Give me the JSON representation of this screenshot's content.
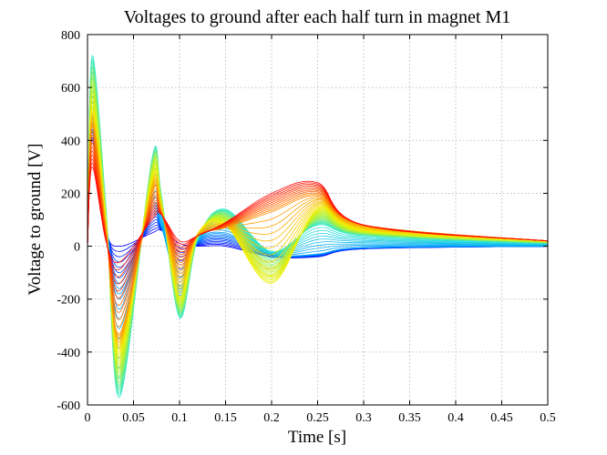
{
  "chart_data": {
    "type": "line",
    "title": "Voltages to ground after each half turn in magnet M1",
    "xlabel": "Time [s]",
    "ylabel": "Voltage to ground [V]",
    "xlim": [
      0,
      0.5
    ],
    "ylim": [
      -600,
      800
    ],
    "xticks": [
      0,
      0.05,
      0.1,
      0.15,
      0.2,
      0.25,
      0.3,
      0.35,
      0.4,
      0.45,
      0.5
    ],
    "xtick_labels": [
      "0",
      "0.05",
      "0.1",
      "0.15",
      "0.2",
      "0.25",
      "0.3",
      "0.35",
      "0.4",
      "0.45",
      "0.5"
    ],
    "yticks": [
      -600,
      -400,
      -200,
      0,
      200,
      400,
      600,
      800
    ],
    "ytick_labels": [
      "-600",
      "-400",
      "-200",
      "0",
      "200",
      "400",
      "600",
      "800"
    ],
    "grid": true,
    "legend": "none",
    "colormap": "blue-to-red (jet), one curve per half turn",
    "series": [
      {
        "color": "#0000ff",
        "x": [
          0,
          0.005,
          0.02,
          0.035,
          0.07,
          0.08,
          0.1,
          0.12,
          0.15,
          0.2,
          0.25,
          0.3,
          0.5
        ],
        "y": [
          0,
          400,
          60,
          0,
          50,
          60,
          10,
          0,
          0,
          -40,
          -40,
          -10,
          0
        ]
      },
      {
        "color": "#00a0ff",
        "x": [
          0,
          0.005,
          0.02,
          0.035,
          0.07,
          0.08,
          0.1,
          0.12,
          0.15,
          0.2,
          0.25,
          0.3,
          0.5
        ],
        "y": [
          0,
          500,
          100,
          -200,
          150,
          80,
          -150,
          20,
          50,
          -30,
          -30,
          -5,
          0
        ]
      },
      {
        "color": "#30e8d0",
        "x": [
          0,
          0.005,
          0.02,
          0.035,
          0.07,
          0.08,
          0.1,
          0.12,
          0.15,
          0.2,
          0.25,
          0.3,
          0.5
        ],
        "y": [
          0,
          720,
          150,
          -570,
          330,
          200,
          -270,
          30,
          140,
          -20,
          80,
          40,
          10
        ]
      },
      {
        "color": "#a8f040",
        "x": [
          0,
          0.005,
          0.02,
          0.035,
          0.07,
          0.08,
          0.1,
          0.12,
          0.15,
          0.2,
          0.25,
          0.3,
          0.5
        ],
        "y": [
          0,
          620,
          120,
          -480,
          300,
          180,
          -230,
          40,
          110,
          -80,
          110,
          50,
          15
        ]
      },
      {
        "color": "#f0f000",
        "x": [
          0,
          0.005,
          0.02,
          0.035,
          0.07,
          0.08,
          0.1,
          0.12,
          0.15,
          0.2,
          0.25,
          0.3,
          0.5
        ],
        "y": [
          0,
          520,
          90,
          -400,
          250,
          160,
          -190,
          50,
          80,
          -140,
          140,
          60,
          20
        ]
      },
      {
        "color": "#ff9000",
        "x": [
          0,
          0.005,
          0.02,
          0.035,
          0.07,
          0.08,
          0.1,
          0.12,
          0.15,
          0.2,
          0.25,
          0.3,
          0.5
        ],
        "y": [
          0,
          450,
          60,
          -330,
          200,
          130,
          -80,
          40,
          70,
          130,
          190,
          80,
          20
        ]
      },
      {
        "color": "#ff0000",
        "x": [
          0,
          0.005,
          0.02,
          0.035,
          0.07,
          0.08,
          0.1,
          0.12,
          0.15,
          0.2,
          0.25,
          0.3,
          0.5
        ],
        "y": [
          0,
          300,
          20,
          -60,
          100,
          120,
          20,
          40,
          90,
          200,
          240,
          80,
          20
        ]
      }
    ]
  }
}
